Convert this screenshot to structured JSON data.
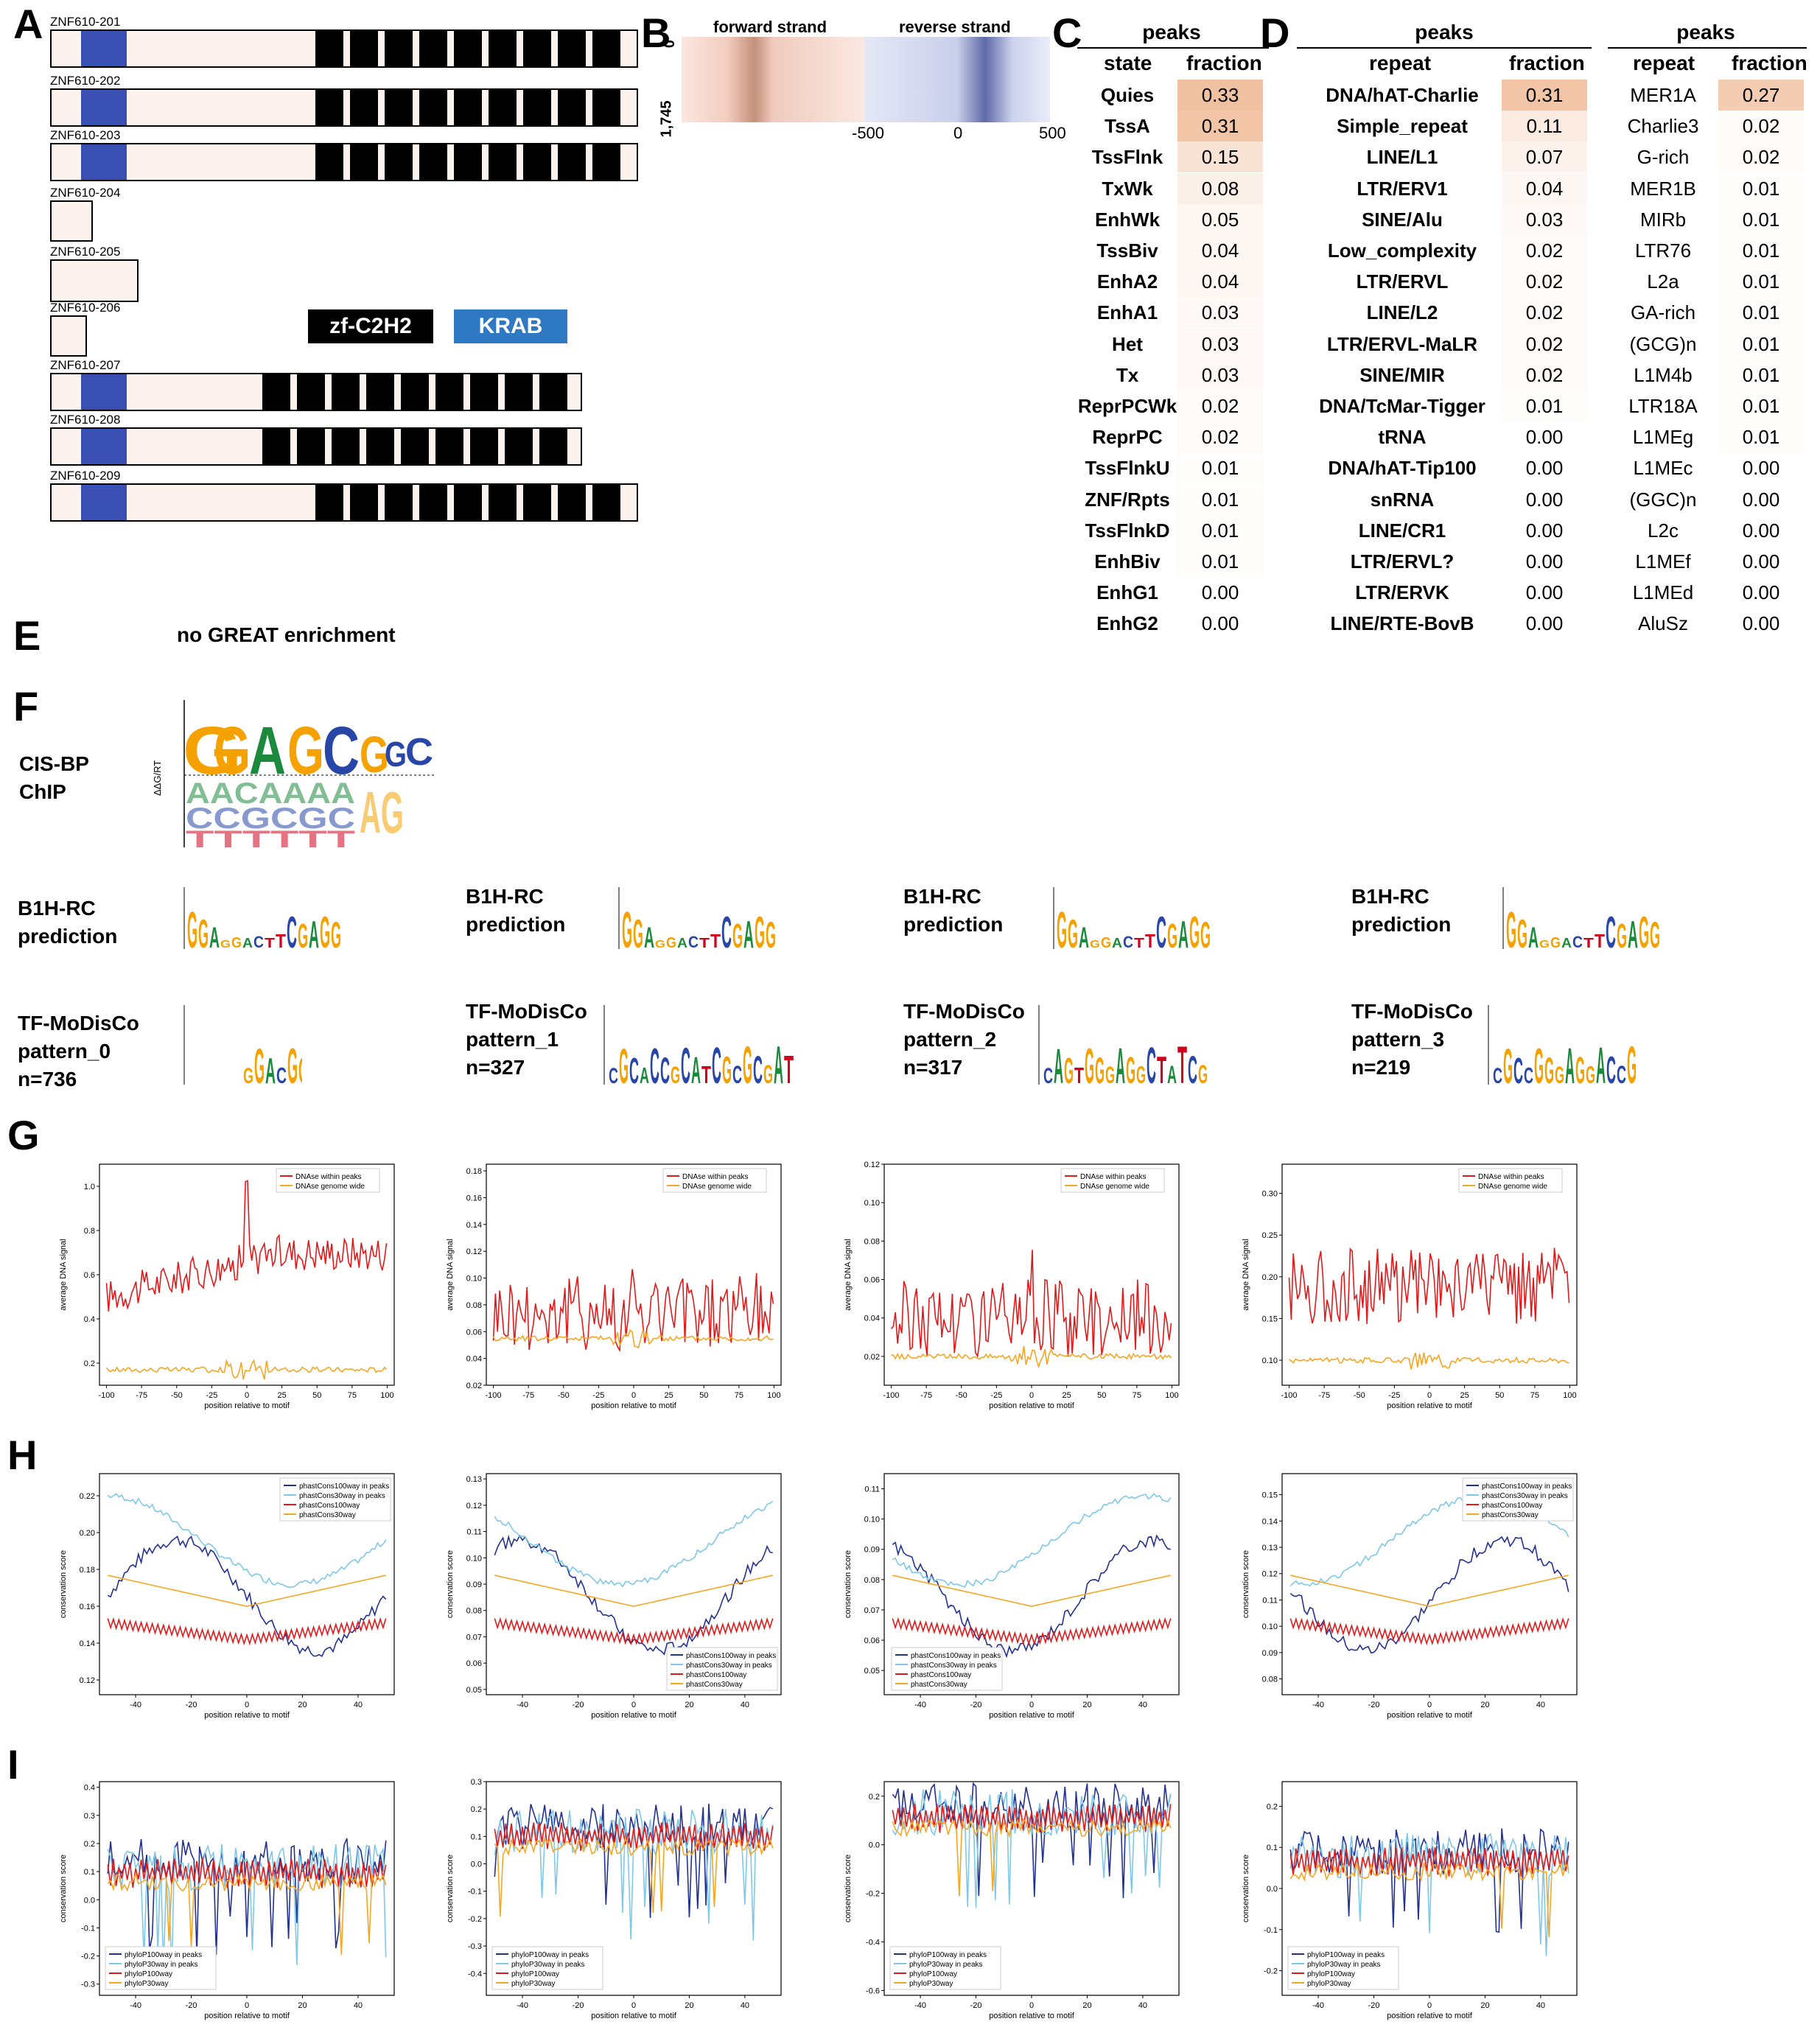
{
  "panels": {
    "A": "A",
    "B": "B",
    "C": "C",
    "D": "D",
    "E": "E",
    "F": "F",
    "G": "G",
    "H": "H",
    "I": "I"
  },
  "panelA": {
    "transcripts": [
      {
        "id": "ZNF610-201",
        "krab": true,
        "zf": 9
      },
      {
        "id": "ZNF610-202",
        "krab": true,
        "zf": 9
      },
      {
        "id": "ZNF610-203",
        "krab": true,
        "zf": 9
      },
      {
        "id": "ZNF610-204",
        "krab": false,
        "zf": 0
      },
      {
        "id": "ZNF610-205",
        "krab": false,
        "zf": 0
      },
      {
        "id": "ZNF610-206",
        "krab": false,
        "zf": 0
      },
      {
        "id": "ZNF610-207",
        "krab": true,
        "zf": 9
      },
      {
        "id": "ZNF610-208",
        "krab": true,
        "zf": 9
      },
      {
        "id": "ZNF610-209",
        "krab": true,
        "zf": 9
      }
    ],
    "legend": {
      "zf": "zf-C2H2",
      "krab": "KRAB"
    },
    "colors": {
      "krab": "#3a4fb3",
      "zf": "#000000",
      "body": "#fdf3ee",
      "legend_krab": "#2f78c2"
    }
  },
  "panelB": {
    "forward": "forward strand",
    "reverse": "reverse strand",
    "y_top": "0",
    "y_bottom": "1,745",
    "ticks": [
      "-500",
      "0",
      "500"
    ]
  },
  "panelC": {
    "title": "peaks",
    "col1": "state",
    "col2": "fraction",
    "rows": [
      [
        "Quies",
        "0.33"
      ],
      [
        "TssA",
        "0.31"
      ],
      [
        "TssFlnk",
        "0.15"
      ],
      [
        "TxWk",
        "0.08"
      ],
      [
        "EnhWk",
        "0.05"
      ],
      [
        "TssBiv",
        "0.04"
      ],
      [
        "EnhA2",
        "0.04"
      ],
      [
        "EnhA1",
        "0.03"
      ],
      [
        "Het",
        "0.03"
      ],
      [
        "Tx",
        "0.03"
      ],
      [
        "ReprPCWk",
        "0.02"
      ],
      [
        "ReprPC",
        "0.02"
      ],
      [
        "TssFlnkU",
        "0.01"
      ],
      [
        "ZNF/Rpts",
        "0.01"
      ],
      [
        "TssFlnkD",
        "0.01"
      ],
      [
        "EnhBiv",
        "0.01"
      ],
      [
        "EnhG1",
        "0.00"
      ],
      [
        "EnhG2",
        "0.00"
      ]
    ]
  },
  "panelD": {
    "title1": "peaks",
    "col1": "repeat",
    "col2": "fraction",
    "rows1": [
      [
        "DNA/hAT-Charlie",
        "0.31"
      ],
      [
        "Simple_repeat",
        "0.11"
      ],
      [
        "LINE/L1",
        "0.07"
      ],
      [
        "LTR/ERV1",
        "0.04"
      ],
      [
        "SINE/Alu",
        "0.03"
      ],
      [
        "Low_complexity",
        "0.02"
      ],
      [
        "LTR/ERVL",
        "0.02"
      ],
      [
        "LINE/L2",
        "0.02"
      ],
      [
        "LTR/ERVL-MaLR",
        "0.02"
      ],
      [
        "SINE/MIR",
        "0.02"
      ],
      [
        "DNA/TcMar-Tigger",
        "0.01"
      ],
      [
        "tRNA",
        "0.00"
      ],
      [
        "DNA/hAT-Tip100",
        "0.00"
      ],
      [
        "snRNA",
        "0.00"
      ],
      [
        "LINE/CR1",
        "0.00"
      ],
      [
        "LTR/ERVL?",
        "0.00"
      ],
      [
        "LTR/ERVK",
        "0.00"
      ],
      [
        "LINE/RTE-BovB",
        "0.00"
      ]
    ],
    "title2": "peaks",
    "rows2": [
      [
        "MER1A",
        "0.27"
      ],
      [
        "Charlie3",
        "0.02"
      ],
      [
        "G-rich",
        "0.02"
      ],
      [
        "MER1B",
        "0.01"
      ],
      [
        "MIRb",
        "0.01"
      ],
      [
        "LTR76",
        "0.01"
      ],
      [
        "L2a",
        "0.01"
      ],
      [
        "GA-rich",
        "0.01"
      ],
      [
        "(GCG)n",
        "0.01"
      ],
      [
        "L1M4b",
        "0.01"
      ],
      [
        "LTR18A",
        "0.01"
      ],
      [
        "L1MEg",
        "0.01"
      ],
      [
        "L1MEc",
        "0.00"
      ],
      [
        "(GGC)n",
        "0.00"
      ],
      [
        "L2c",
        "0.00"
      ],
      [
        "L1MEf",
        "0.00"
      ],
      [
        "L1MEd",
        "0.00"
      ],
      [
        "AluSz",
        "0.00"
      ]
    ]
  },
  "panelE": {
    "text": "no GREAT enrichment"
  },
  "panelF": {
    "cisbp_label1": "CIS-BP",
    "cisbp_label2": "ChIP",
    "cisbp_ylabel": "ΔΔG/RT",
    "cisbp_top": "GGAGCGGC",
    "b1h_label1": "B1H-RC",
    "b1h_label2": "prediction",
    "tfmodisco": [
      {
        "l1": "TF-MoDisCo",
        "l2": "pattern_0",
        "l3": "n=736"
      },
      {
        "l1": "TF-MoDisCo",
        "l2": "pattern_1",
        "l3": "n=327"
      },
      {
        "l1": "TF-MoDisCo",
        "l2": "pattern_2",
        "l3": "n=317"
      },
      {
        "l1": "TF-MoDisCo",
        "l2": "pattern_3",
        "l3": "n=219"
      }
    ]
  },
  "panelG": {
    "xlabel": "position relative to motif",
    "ylabel": "average DNA signal",
    "legend": [
      "DNAse within peaks",
      "DNAse genome wide"
    ],
    "xticks": [
      "-100",
      "-75",
      "-50",
      "-25",
      "0",
      "25",
      "50",
      "75",
      "100"
    ],
    "plots": [
      {
        "yticks": [
          "0.2",
          "0.4",
          "0.6",
          "0.8",
          "1.0"
        ],
        "ylim": [
          0.1,
          1.1
        ],
        "peaks_base": 0.62,
        "wide_base": 0.17
      },
      {
        "yticks": [
          "0.02",
          "0.04",
          "0.06",
          "0.08",
          "0.10",
          "0.12",
          "0.14",
          "0.16",
          "0.18"
        ],
        "ylim": [
          0.02,
          0.185
        ],
        "peaks_base": 0.075,
        "wide_base": 0.055
      },
      {
        "yticks": [
          "0.02",
          "0.04",
          "0.06",
          "0.08",
          "0.10",
          "0.12"
        ],
        "ylim": [
          0.005,
          0.12
        ],
        "peaks_base": 0.04,
        "wide_base": 0.02
      },
      {
        "yticks": [
          "0.10",
          "0.15",
          "0.20",
          "0.25",
          "0.30"
        ],
        "ylim": [
          0.07,
          0.335
        ],
        "peaks_base": 0.19,
        "wide_base": 0.1
      }
    ]
  },
  "panelH": {
    "xlabel": "position relative to motif",
    "ylabel": "conservation score",
    "legend": [
      "phastCons100way in peaks",
      "phastCons30way in peaks",
      "phastCons100way",
      "phastCons30way"
    ],
    "xticks": [
      "-40",
      "-20",
      "0",
      "20",
      "40"
    ],
    "plots": [
      {
        "yticks": [
          "0.12",
          "0.14",
          "0.16",
          "0.18",
          "0.20",
          "0.22"
        ],
        "ylim": [
          0.112,
          0.232
        ]
      },
      {
        "yticks": [
          "0.05",
          "0.06",
          "0.07",
          "0.08",
          "0.09",
          "0.10",
          "0.11",
          "0.12",
          "0.13"
        ],
        "ylim": [
          0.048,
          0.132
        ]
      },
      {
        "yticks": [
          "0.05",
          "0.06",
          "0.07",
          "0.08",
          "0.09",
          "0.10",
          "0.11"
        ],
        "ylim": [
          0.042,
          0.115
        ]
      },
      {
        "yticks": [
          "0.08",
          "0.09",
          "0.10",
          "0.11",
          "0.12",
          "0.13",
          "0.14",
          "0.15"
        ],
        "ylim": [
          0.074,
          0.158
        ]
      }
    ]
  },
  "panelI": {
    "xlabel": "position relative to motif",
    "ylabel": "conservation score",
    "legend": [
      "phyloP100way in peaks",
      "phyloP30way in peaks",
      "phyloP100way",
      "phyloP30way"
    ],
    "xticks": [
      "-40",
      "-20",
      "0",
      "20",
      "40"
    ],
    "plots": [
      {
        "yticks": [
          "-0.3",
          "-0.2",
          "-0.1",
          "0.0",
          "0.1",
          "0.2",
          "0.3",
          "0.4"
        ],
        "ylim": [
          -0.34,
          0.42
        ]
      },
      {
        "yticks": [
          "-0.4",
          "-0.3",
          "-0.2",
          "-0.1",
          "0.0",
          "0.1",
          "0.2",
          "0.3"
        ],
        "ylim": [
          -0.48,
          0.3
        ]
      },
      {
        "yticks": [
          "-0.6",
          "-0.4",
          "-0.2",
          "0.0",
          "0.2"
        ],
        "ylim": [
          -0.62,
          0.26
        ]
      },
      {
        "yticks": [
          "-0.2",
          "-0.1",
          "0.0",
          "0.1",
          "0.2"
        ],
        "ylim": [
          -0.26,
          0.26
        ]
      }
    ]
  }
}
